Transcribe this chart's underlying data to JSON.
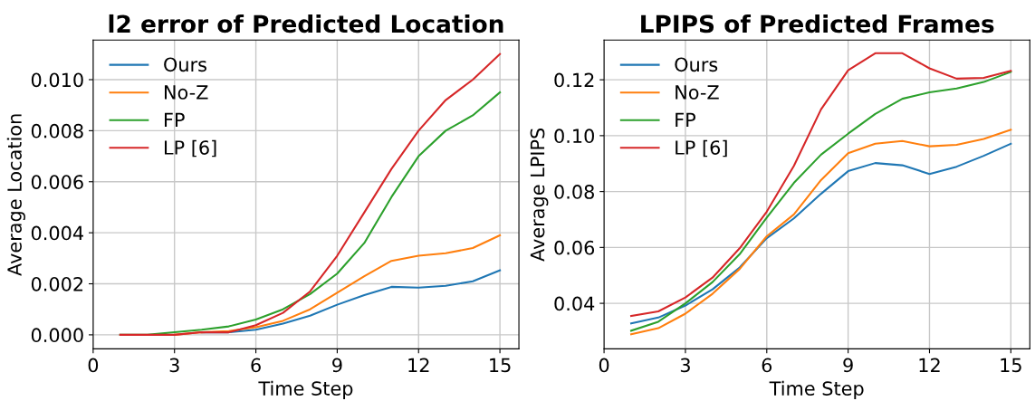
{
  "chart_data": [
    {
      "type": "line",
      "title": "l2 error of Predicted Location",
      "xlabel": "Time Step",
      "ylabel": "Average Location",
      "x": [
        1,
        2,
        3,
        4,
        5,
        6,
        7,
        8,
        9,
        10,
        11,
        12,
        13,
        14,
        15
      ],
      "series": [
        {
          "name": "Ours",
          "color": "#1f77b4",
          "values": [
            null,
            null,
            null,
            0.0001,
            0.0001,
            0.0002,
            0.00044,
            0.00075,
            0.00118,
            0.00156,
            0.00188,
            0.00185,
            0.00192,
            0.0021,
            0.00253
          ]
        },
        {
          "name": "No-Z",
          "color": "#ff7f0e",
          "values": [
            null,
            null,
            0,
            0.0001,
            0.00015,
            0.0003,
            0.00055,
            0.001,
            0.00165,
            0.0023,
            0.0029,
            0.0031,
            0.0032,
            0.0034,
            0.0039
          ]
        },
        {
          "name": "FP",
          "color": "#2ca02c",
          "values": [
            0,
            0,
            0.0001,
            0.0002,
            0.00033,
            0.0006,
            0.001,
            0.0016,
            0.0024,
            0.0036,
            0.0054,
            0.007,
            0.008,
            0.0086,
            0.0095
          ]
        },
        {
          "name": "LP [6]",
          "color": "#d62728",
          "values": [
            0,
            0,
            0,
            0.0001,
            0.0001,
            0.00038,
            0.00086,
            0.0017,
            0.0031,
            0.0048,
            0.0065,
            0.008,
            0.0092,
            0.01,
            0.011
          ]
        }
      ],
      "xlim": [
        0,
        15.7
      ],
      "xticks": [
        0,
        3,
        6,
        9,
        12,
        15
      ],
      "ylim": [
        -0.00055,
        0.01155
      ],
      "yticks": [
        {
          "value": 0,
          "label": "0.000"
        },
        {
          "value": 0.002,
          "label": "0.002"
        },
        {
          "value": 0.004,
          "label": "0.004"
        },
        {
          "value": 0.006,
          "label": "0.006"
        },
        {
          "value": 0.008,
          "label": "0.008"
        },
        {
          "value": 0.01,
          "label": "0.010"
        }
      ],
      "grid": true,
      "legend": "top left"
    },
    {
      "type": "line",
      "title": "LPIPS of Predicted Frames",
      "xlabel": "Time Step",
      "ylabel": "Average LPIPS",
      "x": [
        1,
        2,
        3,
        4,
        5,
        6,
        7,
        8,
        9,
        10,
        11,
        12,
        13,
        14,
        15
      ],
      "series": [
        {
          "name": "Ours",
          "color": "#1f77b4",
          "values": [
            0.0328,
            0.0349,
            0.0392,
            0.045,
            0.0528,
            0.0633,
            0.0704,
            0.0792,
            0.0873,
            0.0902,
            0.0894,
            0.0863,
            0.0889,
            0.0928,
            0.0971
          ]
        },
        {
          "name": "No-Z",
          "color": "#ff7f0e",
          "values": [
            0.0289,
            0.0311,
            0.0363,
            0.0434,
            0.0523,
            0.064,
            0.0718,
            0.0841,
            0.0937,
            0.0971,
            0.0981,
            0.0962,
            0.0967,
            0.0988,
            0.1021
          ]
        },
        {
          "name": "FP",
          "color": "#2ca02c",
          "values": [
            0.0302,
            0.0334,
            0.04,
            0.0476,
            0.0576,
            0.0707,
            0.0831,
            0.0932,
            0.1007,
            0.1078,
            0.1132,
            0.1155,
            0.1169,
            0.1192,
            0.1228
          ]
        },
        {
          "name": "LP [6]",
          "color": "#d62728",
          "values": [
            0.0355,
            0.0371,
            0.0421,
            0.0492,
            0.0597,
            0.0728,
            0.0892,
            0.1094,
            0.1234,
            0.1295,
            0.1295,
            0.1241,
            0.1204,
            0.1207,
            0.1232
          ]
        }
      ],
      "xlim": [
        0,
        15.7
      ],
      "xticks": [
        0,
        3,
        6,
        9,
        12,
        15
      ],
      "ylim": [
        0.0237,
        0.1342
      ],
      "yticks": [
        {
          "value": 0.04,
          "label": "0.04"
        },
        {
          "value": 0.06,
          "label": "0.06"
        },
        {
          "value": 0.08,
          "label": "0.08"
        },
        {
          "value": 0.1,
          "label": "0.10"
        },
        {
          "value": 0.12,
          "label": "0.12"
        }
      ],
      "grid": true,
      "legend": "top left"
    }
  ]
}
